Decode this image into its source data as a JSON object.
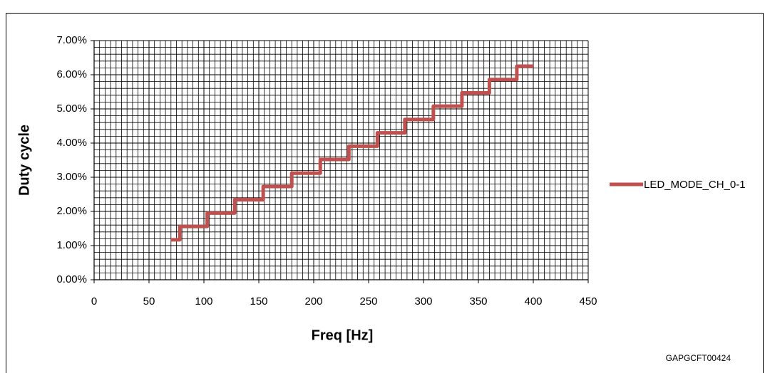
{
  "chart_data": {
    "type": "line",
    "x_label": "Freq [Hz]",
    "y_label": "Duty cycle",
    "code": "GAPGCFT00424",
    "x": [
      70,
      78,
      78,
      103,
      103,
      128,
      128,
      154,
      154,
      180,
      180,
      206,
      206,
      232,
      232,
      258,
      258,
      283,
      283,
      309,
      309,
      335,
      335,
      360,
      360,
      385,
      385,
      400
    ],
    "series": [
      {
        "name": "LED_MODE_CH_0-1",
        "color": "#c0504d",
        "values": [
          1.17,
          1.17,
          1.56,
          1.56,
          1.95,
          1.95,
          2.34,
          2.34,
          2.73,
          2.73,
          3.12,
          3.12,
          3.52,
          3.52,
          3.91,
          3.91,
          4.3,
          4.3,
          4.69,
          4.69,
          5.08,
          5.08,
          5.47,
          5.47,
          5.86,
          5.86,
          6.25,
          6.25
        ]
      }
    ],
    "xlim": [
      0,
      450
    ],
    "xticks": [
      0,
      50,
      100,
      150,
      200,
      250,
      300,
      350,
      400,
      450
    ],
    "ylim": [
      0,
      7
    ],
    "yticks": [
      {
        "value": 0,
        "label": "0.00%"
      },
      {
        "value": 1,
        "label": "1.00%"
      },
      {
        "value": 2,
        "label": "2.00%"
      },
      {
        "value": 3,
        "label": "3.00%"
      },
      {
        "value": 4,
        "label": "4.00%"
      },
      {
        "value": 5,
        "label": "5.00%"
      },
      {
        "value": 6,
        "label": "6.00%"
      },
      {
        "value": 7,
        "label": "7.00%"
      }
    ],
    "grid": true,
    "legend": "right"
  }
}
